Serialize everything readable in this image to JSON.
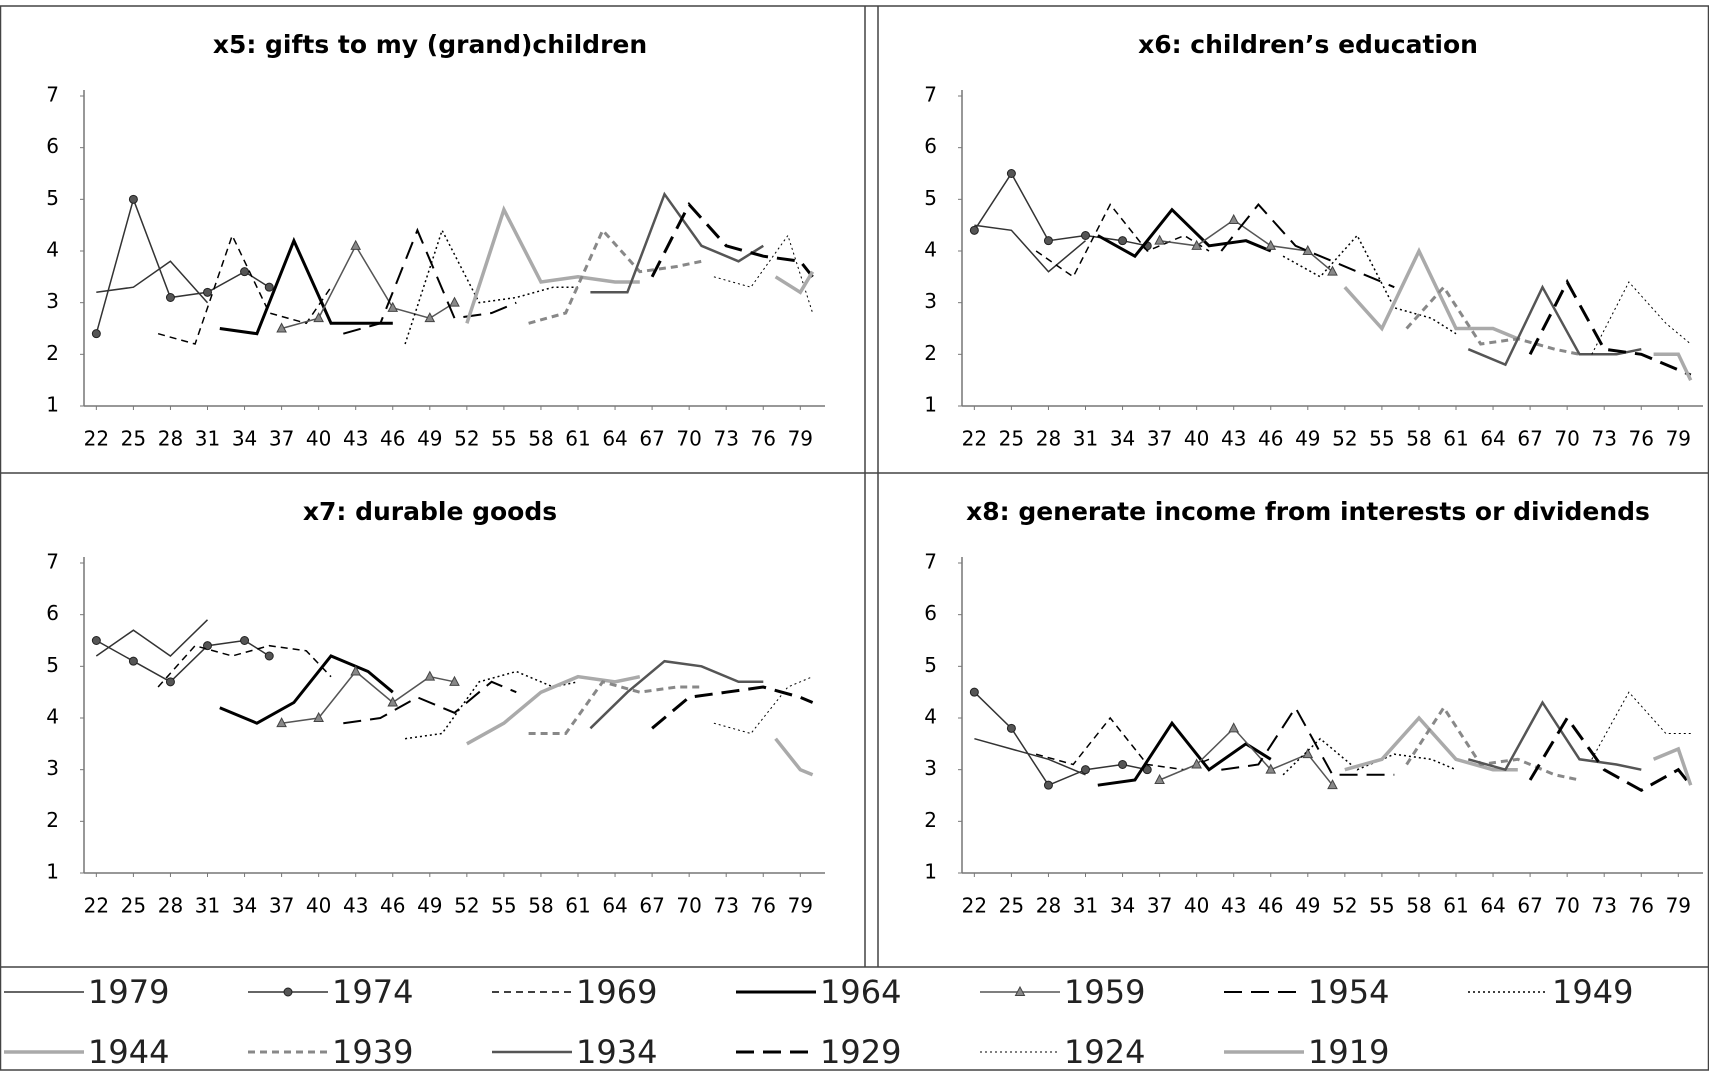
{
  "legend": [
    {
      "name": "1979",
      "color": "#333333",
      "line_style": "solid",
      "line_width": 1.5,
      "marker": "none"
    },
    {
      "name": "1974",
      "color": "#333333",
      "line_style": "solid",
      "line_width": 1.5,
      "marker": "circle"
    },
    {
      "name": "1969",
      "color": "#000000",
      "line_style": "dashed",
      "line_width": 1.5,
      "marker": "none"
    },
    {
      "name": "1964",
      "color": "#000000",
      "line_style": "solid",
      "line_width": 3,
      "marker": "none"
    },
    {
      "name": "1959",
      "color": "#555555",
      "line_style": "solid",
      "line_width": 1.5,
      "marker": "triangle"
    },
    {
      "name": "1954",
      "color": "#000000",
      "line_style": "long-dash",
      "line_width": 2,
      "marker": "none"
    },
    {
      "name": "1949",
      "color": "#000000",
      "line_style": "dotted",
      "line_width": 1.5,
      "marker": "none"
    },
    {
      "name": "1944",
      "color": "#aaaaaa",
      "line_style": "solid",
      "line_width": 3.5,
      "marker": "none"
    },
    {
      "name": "1939",
      "color": "#888888",
      "line_style": "dashed",
      "line_width": 3,
      "marker": "none"
    },
    {
      "name": "1934",
      "color": "#555555",
      "line_style": "solid",
      "line_width": 2.5,
      "marker": "none"
    },
    {
      "name": "1929",
      "color": "#000000",
      "line_style": "long-dash",
      "line_width": 3,
      "marker": "none"
    },
    {
      "name": "1924",
      "color": "#000000",
      "line_style": "dotted",
      "line_width": 1,
      "marker": "none"
    },
    {
      "name": "1919",
      "color": "#aaaaaa",
      "line_style": "solid",
      "line_width": 3.5,
      "marker": "none"
    }
  ],
  "chart_data": [
    {
      "type": "line",
      "title": "x5: gifts to my (grand)children",
      "xlim": [
        21,
        81
      ],
      "xticks": [
        22,
        25,
        28,
        31,
        34,
        37,
        40,
        43,
        46,
        49,
        52,
        55,
        58,
        61,
        64,
        67,
        70,
        73,
        76,
        79
      ],
      "ylim": [
        1,
        7
      ],
      "yticks": [
        1,
        2,
        3,
        4,
        5,
        6,
        7
      ],
      "series": [
        {
          "x": [
            22,
            25,
            28,
            31
          ],
          "values": [
            3.2,
            3.3,
            3.8,
            3.0
          ]
        },
        {
          "x": [
            22,
            25,
            28,
            31,
            34,
            36
          ],
          "values": [
            2.4,
            5.0,
            3.1,
            3.2,
            3.6,
            3.3
          ]
        },
        {
          "x": [
            27,
            30,
            33,
            36,
            39,
            41
          ],
          "values": [
            2.4,
            2.2,
            4.3,
            2.8,
            2.6,
            3.3
          ]
        },
        {
          "x": [
            32,
            35,
            38,
            41,
            44,
            46
          ],
          "values": [
            2.5,
            2.4,
            4.2,
            2.6,
            2.6,
            2.6
          ]
        },
        {
          "x": [
            37,
            40,
            43,
            46,
            49,
            51
          ],
          "values": [
            2.5,
            2.7,
            4.1,
            2.9,
            2.7,
            3.0
          ]
        },
        {
          "x": [
            42,
            45,
            48,
            51,
            54,
            56
          ],
          "values": [
            2.4,
            2.6,
            4.4,
            2.7,
            2.8,
            3.0
          ]
        },
        {
          "x": [
            47,
            50,
            53,
            56,
            59,
            61
          ],
          "values": [
            2.2,
            4.4,
            3.0,
            3.1,
            3.3,
            3.3
          ]
        },
        {
          "x": [
            52,
            55,
            58,
            61,
            64,
            66
          ],
          "values": [
            2.6,
            4.8,
            3.4,
            3.5,
            3.4,
            3.4
          ]
        },
        {
          "x": [
            57,
            60,
            63,
            66,
            69,
            71
          ],
          "values": [
            2.6,
            2.8,
            4.4,
            3.6,
            3.7,
            3.8
          ]
        },
        {
          "x": [
            62,
            65,
            68,
            71,
            74,
            76
          ],
          "values": [
            3.2,
            3.2,
            5.1,
            4.1,
            3.8,
            4.1
          ]
        },
        {
          "x": [
            67,
            70,
            73,
            76,
            79,
            80
          ],
          "values": [
            3.5,
            4.9,
            4.1,
            3.9,
            3.8,
            3.5
          ]
        },
        {
          "x": [
            72,
            75,
            78,
            80
          ],
          "values": [
            3.5,
            3.3,
            4.3,
            2.8
          ]
        },
        {
          "x": [
            77,
            79,
            80
          ],
          "values": [
            3.5,
            3.2,
            3.6
          ]
        }
      ]
    },
    {
      "type": "line",
      "title": "x6: children’s education",
      "xlim": [
        21,
        81
      ],
      "xticks": [
        22,
        25,
        28,
        31,
        34,
        37,
        40,
        43,
        46,
        49,
        52,
        55,
        58,
        61,
        64,
        67,
        70,
        73,
        76,
        79
      ],
      "ylim": [
        1,
        7
      ],
      "yticks": [
        1,
        2,
        3,
        4,
        5,
        6,
        7
      ],
      "series": [
        {
          "x": [
            22,
            25,
            28,
            31
          ],
          "values": [
            4.5,
            4.4,
            3.6,
            4.2
          ]
        },
        {
          "x": [
            22,
            25,
            28,
            31,
            34,
            36
          ],
          "values": [
            4.4,
            5.5,
            4.2,
            4.3,
            4.2,
            4.1
          ]
        },
        {
          "x": [
            27,
            30,
            33,
            36,
            39,
            41
          ],
          "values": [
            4.0,
            3.5,
            4.9,
            4.0,
            4.3,
            4.0
          ]
        },
        {
          "x": [
            32,
            35,
            38,
            41,
            44,
            46
          ],
          "values": [
            4.3,
            3.9,
            4.8,
            4.1,
            4.2,
            4.0
          ]
        },
        {
          "x": [
            37,
            40,
            43,
            46,
            49,
            51
          ],
          "values": [
            4.2,
            4.1,
            4.6,
            4.1,
            4.0,
            3.6
          ]
        },
        {
          "x": [
            42,
            45,
            48,
            51,
            54,
            56
          ],
          "values": [
            4.0,
            4.9,
            4.1,
            3.8,
            3.5,
            3.3
          ]
        },
        {
          "x": [
            47,
            50,
            53,
            56,
            59,
            61
          ],
          "values": [
            3.9,
            3.5,
            4.3,
            2.9,
            2.7,
            2.4
          ]
        },
        {
          "x": [
            52,
            55,
            58,
            61,
            64,
            66
          ],
          "values": [
            3.3,
            2.5,
            4.0,
            2.5,
            2.5,
            2.3
          ]
        },
        {
          "x": [
            57,
            60,
            63,
            66,
            69,
            71
          ],
          "values": [
            2.5,
            3.3,
            2.2,
            2.3,
            2.1,
            2.0
          ]
        },
        {
          "x": [
            62,
            65,
            68,
            71,
            74,
            76
          ],
          "values": [
            2.1,
            1.8,
            3.3,
            2.0,
            2.0,
            2.1
          ]
        },
        {
          "x": [
            67,
            70,
            73,
            76,
            79,
            80
          ],
          "values": [
            2.0,
            3.4,
            2.1,
            2.0,
            1.7,
            1.6
          ]
        },
        {
          "x": [
            72,
            75,
            78,
            80
          ],
          "values": [
            2.0,
            3.4,
            2.6,
            2.2
          ]
        },
        {
          "x": [
            77,
            79,
            80
          ],
          "values": [
            2.0,
            2.0,
            1.5
          ]
        }
      ]
    },
    {
      "type": "line",
      "title": "x7: durable goods",
      "xlim": [
        21,
        81
      ],
      "xticks": [
        22,
        25,
        28,
        31,
        34,
        37,
        40,
        43,
        46,
        49,
        52,
        55,
        58,
        61,
        64,
        67,
        70,
        73,
        76,
        79
      ],
      "ylim": [
        1,
        7
      ],
      "yticks": [
        1,
        2,
        3,
        4,
        5,
        6,
        7
      ],
      "series": [
        {
          "x": [
            22,
            25,
            28,
            31
          ],
          "values": [
            5.2,
            5.7,
            5.2,
            5.9
          ]
        },
        {
          "x": [
            22,
            25,
            28,
            31,
            34,
            36
          ],
          "values": [
            5.5,
            5.1,
            4.7,
            5.4,
            5.5,
            5.2
          ]
        },
        {
          "x": [
            27,
            30,
            33,
            36,
            39,
            41
          ],
          "values": [
            4.6,
            5.4,
            5.2,
            5.4,
            5.3,
            4.8
          ]
        },
        {
          "x": [
            32,
            35,
            38,
            41,
            44,
            46
          ],
          "values": [
            4.2,
            3.9,
            4.3,
            5.2,
            4.9,
            4.5
          ]
        },
        {
          "x": [
            37,
            40,
            43,
            46,
            49,
            51
          ],
          "values": [
            3.9,
            4.0,
            4.9,
            4.3,
            4.8,
            4.7
          ]
        },
        {
          "x": [
            42,
            45,
            48,
            51,
            54,
            56
          ],
          "values": [
            3.9,
            4.0,
            4.4,
            4.1,
            4.7,
            4.5
          ]
        },
        {
          "x": [
            47,
            50,
            53,
            56,
            59,
            61
          ],
          "values": [
            3.6,
            3.7,
            4.7,
            4.9,
            4.6,
            4.7
          ]
        },
        {
          "x": [
            52,
            55,
            58,
            61,
            64,
            66
          ],
          "values": [
            3.5,
            3.9,
            4.5,
            4.8,
            4.7,
            4.8
          ]
        },
        {
          "x": [
            57,
            60,
            63,
            66,
            69,
            71
          ],
          "values": [
            3.7,
            3.7,
            4.7,
            4.5,
            4.6,
            4.6
          ]
        },
        {
          "x": [
            62,
            65,
            68,
            71,
            74,
            76
          ],
          "values": [
            3.8,
            4.5,
            5.1,
            5.0,
            4.7,
            4.7
          ]
        },
        {
          "x": [
            67,
            70,
            73,
            76,
            79,
            80
          ],
          "values": [
            3.8,
            4.4,
            4.5,
            4.6,
            4.4,
            4.3
          ]
        },
        {
          "x": [
            72,
            75,
            78,
            80
          ],
          "values": [
            3.9,
            3.7,
            4.6,
            4.8
          ]
        },
        {
          "x": [
            77,
            79,
            80
          ],
          "values": [
            3.6,
            3.0,
            2.9
          ]
        }
      ]
    },
    {
      "type": "line",
      "title": "x8: generate income from interests or dividends",
      "xlim": [
        21,
        81
      ],
      "xticks": [
        22,
        25,
        28,
        31,
        34,
        37,
        40,
        43,
        46,
        49,
        52,
        55,
        58,
        61,
        64,
        67,
        70,
        73,
        76,
        79
      ],
      "ylim": [
        1,
        7
      ],
      "yticks": [
        1,
        2,
        3,
        4,
        5,
        6,
        7
      ],
      "series": [
        {
          "x": [
            22,
            25,
            28,
            31
          ],
          "values": [
            3.6,
            3.4,
            3.2,
            2.9
          ]
        },
        {
          "x": [
            22,
            25,
            28,
            31,
            34,
            36
          ],
          "values": [
            4.5,
            3.8,
            2.7,
            3.0,
            3.1,
            3.0
          ]
        },
        {
          "x": [
            27,
            30,
            33,
            36,
            39,
            41
          ],
          "values": [
            3.3,
            3.1,
            4.0,
            3.1,
            3.0,
            3.2
          ]
        },
        {
          "x": [
            32,
            35,
            38,
            41,
            44,
            46
          ],
          "values": [
            2.7,
            2.8,
            3.9,
            3.0,
            3.5,
            3.2
          ]
        },
        {
          "x": [
            37,
            40,
            43,
            46,
            49,
            51
          ],
          "values": [
            2.8,
            3.1,
            3.8,
            3.0,
            3.3,
            2.7
          ]
        },
        {
          "x": [
            42,
            45,
            48,
            51,
            54,
            56
          ],
          "values": [
            3.0,
            3.1,
            4.2,
            2.9,
            2.9,
            2.9
          ]
        },
        {
          "x": [
            47,
            50,
            53,
            56,
            59,
            61
          ],
          "values": [
            2.9,
            3.6,
            3.0,
            3.3,
            3.2,
            3.0
          ]
        },
        {
          "x": [
            52,
            55,
            58,
            61,
            64,
            66
          ],
          "values": [
            3.0,
            3.2,
            4.0,
            3.2,
            3.0,
            3.0
          ]
        },
        {
          "x": [
            57,
            60,
            63,
            66,
            69,
            71
          ],
          "values": [
            3.1,
            4.2,
            3.1,
            3.2,
            2.9,
            2.8
          ]
        },
        {
          "x": [
            62,
            65,
            68,
            71,
            74,
            76
          ],
          "values": [
            3.2,
            3.0,
            4.3,
            3.2,
            3.1,
            3.0
          ]
        },
        {
          "x": [
            67,
            70,
            73,
            76,
            79,
            80
          ],
          "values": [
            2.8,
            4.0,
            3.0,
            2.6,
            3.0,
            2.7
          ]
        },
        {
          "x": [
            72,
            75,
            78,
            80
          ],
          "values": [
            3.2,
            4.5,
            3.7,
            3.7
          ]
        },
        {
          "x": [
            77,
            79,
            80
          ],
          "values": [
            3.2,
            3.4,
            2.7
          ]
        }
      ]
    }
  ]
}
